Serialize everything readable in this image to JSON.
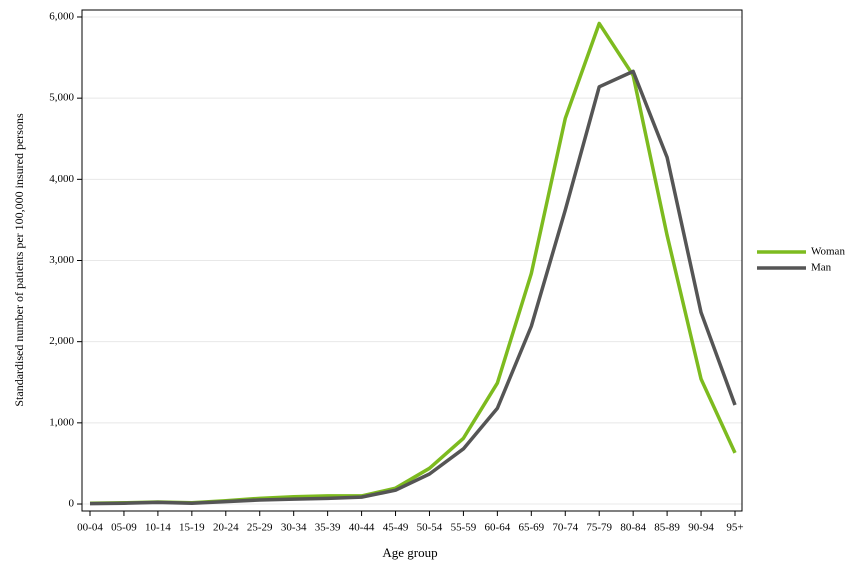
{
  "chart_data": {
    "type": "line",
    "x_label": "Age group",
    "y_label": "Standardised number of patients per 100,000 insured persons",
    "categories": [
      "00-04",
      "05-09",
      "10-14",
      "15-19",
      "20-24",
      "25-29",
      "30-34",
      "35-39",
      "40-44",
      "45-49",
      "50-54",
      "55-59",
      "60-64",
      "65-69",
      "70-74",
      "75-79",
      "80-84",
      "85-89",
      "90-94",
      "95+"
    ],
    "series": [
      {
        "name": "Woman",
        "color": "#7dbb1f",
        "values": [
          10,
          15,
          25,
          15,
          40,
          70,
          90,
          100,
          100,
          195,
          440,
          810,
          1490,
          2840,
          4750,
          5920,
          5280,
          3310,
          1540,
          630
        ]
      },
      {
        "name": "Man",
        "color": "#555555",
        "values": [
          5,
          10,
          20,
          10,
          30,
          50,
          60,
          70,
          85,
          170,
          370,
          680,
          1180,
          2190,
          3620,
          5140,
          5330,
          4270,
          2360,
          1220
        ]
      }
    ],
    "ylim": [
      -86,
      6086
    ],
    "yticks": [
      0,
      {
        "value": 1000,
        "label": "1,000"
      },
      {
        "value": 2000,
        "label": "2,000"
      },
      {
        "value": 3000,
        "label": "3,000"
      },
      {
        "value": 4000,
        "label": "4,000"
      },
      {
        "value": 5000,
        "label": "5,000"
      },
      {
        "value": 6000,
        "label": "6,000"
      }
    ],
    "grid": true,
    "legend": "right"
  }
}
